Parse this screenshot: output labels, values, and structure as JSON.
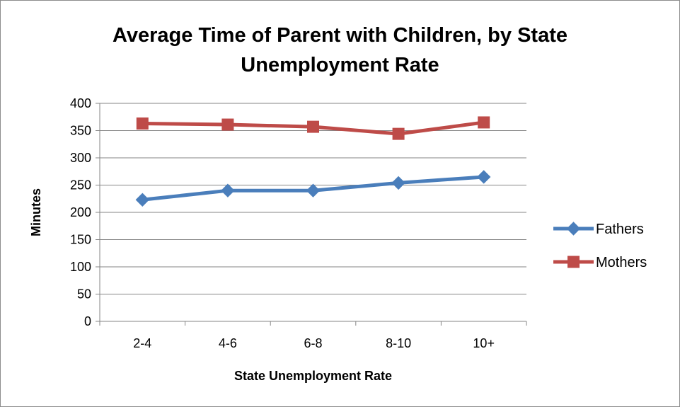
{
  "chart_data": {
    "type": "line",
    "title_lines": [
      "Average Time of Parent with Children, by State",
      "Unemployment Rate"
    ],
    "xlabel": "State Unemployment Rate",
    "ylabel": "Minutes",
    "categories": [
      "2-4",
      "4-6",
      "6-8",
      "8-10",
      "10+"
    ],
    "ylim": [
      0,
      400
    ],
    "yticks": [
      0,
      50,
      100,
      150,
      200,
      250,
      300,
      350,
      400
    ],
    "grid": true,
    "legend_position": "right",
    "series": [
      {
        "name": "Fathers",
        "values": [
          223,
          240,
          240,
          254,
          265
        ],
        "color": "#4a7ebb",
        "marker": "diamond"
      },
      {
        "name": "Mothers",
        "values": [
          363,
          361,
          357,
          344,
          365
        ],
        "color": "#be4b48",
        "marker": "square"
      }
    ]
  }
}
